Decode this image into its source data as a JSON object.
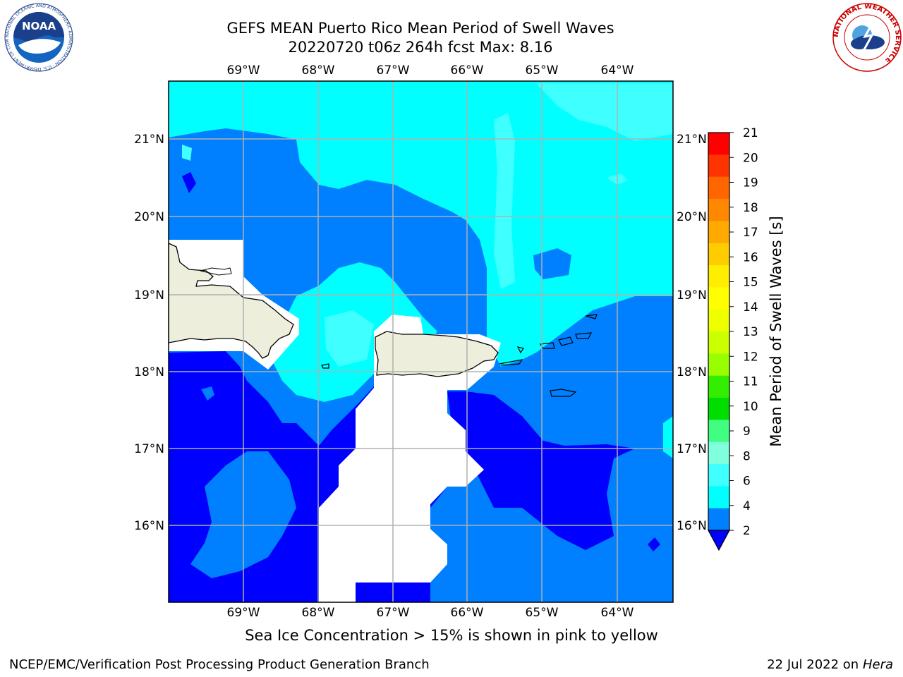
{
  "title": {
    "line1": "GEFS MEAN Puerto Rico Mean Period of Swell Waves",
    "line2": "20220720 t06z 264h fcst   Max: 8.16"
  },
  "map": {
    "lon_labels": [
      "69°W",
      "68°W",
      "67°W",
      "66°W",
      "65°W",
      "64°W"
    ],
    "lat_labels": [
      "21°N",
      "20°N",
      "19°N",
      "18°N",
      "17°N",
      "16°N"
    ],
    "regions": [
      "Hispaniola",
      "Puerto Rico",
      "Virgin Islands"
    ],
    "fill_colors": {
      "land": "#eeeedc",
      "below_2": "#0000ff",
      "2_4": "#0080ff",
      "4_6": "#00ffff",
      "6_8": "#40ffff",
      "masked": "#ffffff"
    }
  },
  "colorbar": {
    "label": "Mean Period of Swell Waves [s]",
    "ticks": [
      "21",
      "20",
      "19",
      "18",
      "17",
      "16",
      "15",
      "14",
      "13",
      "12",
      "11",
      "10",
      "9",
      "8",
      "6",
      "4",
      "2"
    ],
    "colors": [
      "#ff0000",
      "#ff3300",
      "#ff6600",
      "#ff8800",
      "#ffaa00",
      "#ffcc00",
      "#ffee00",
      "#ffff00",
      "#eeff00",
      "#ccff00",
      "#99ff00",
      "#33ee00",
      "#00dd00",
      "#40ff80",
      "#80ffdd",
      "#40ffff",
      "#00ffff",
      "#0080ff"
    ],
    "extend_color": "#0000ff"
  },
  "caption": "Sea Ice Concentration > 15% is shown in pink to yellow",
  "footer": {
    "left": "NCEP/EMC/Verification Post Processing Product Generation Branch",
    "date": "22 Jul 2022 on ",
    "machine": "Hera"
  },
  "logos": {
    "noaa_text": "NOAA",
    "noaa_ring": "NATIONAL OCEANIC AND ATMOSPHERIC ADMINISTRATION · U.S. DEPARTMENT OF COMMERCE",
    "nws_ring": "NATIONAL WEATHER SERVICE"
  }
}
